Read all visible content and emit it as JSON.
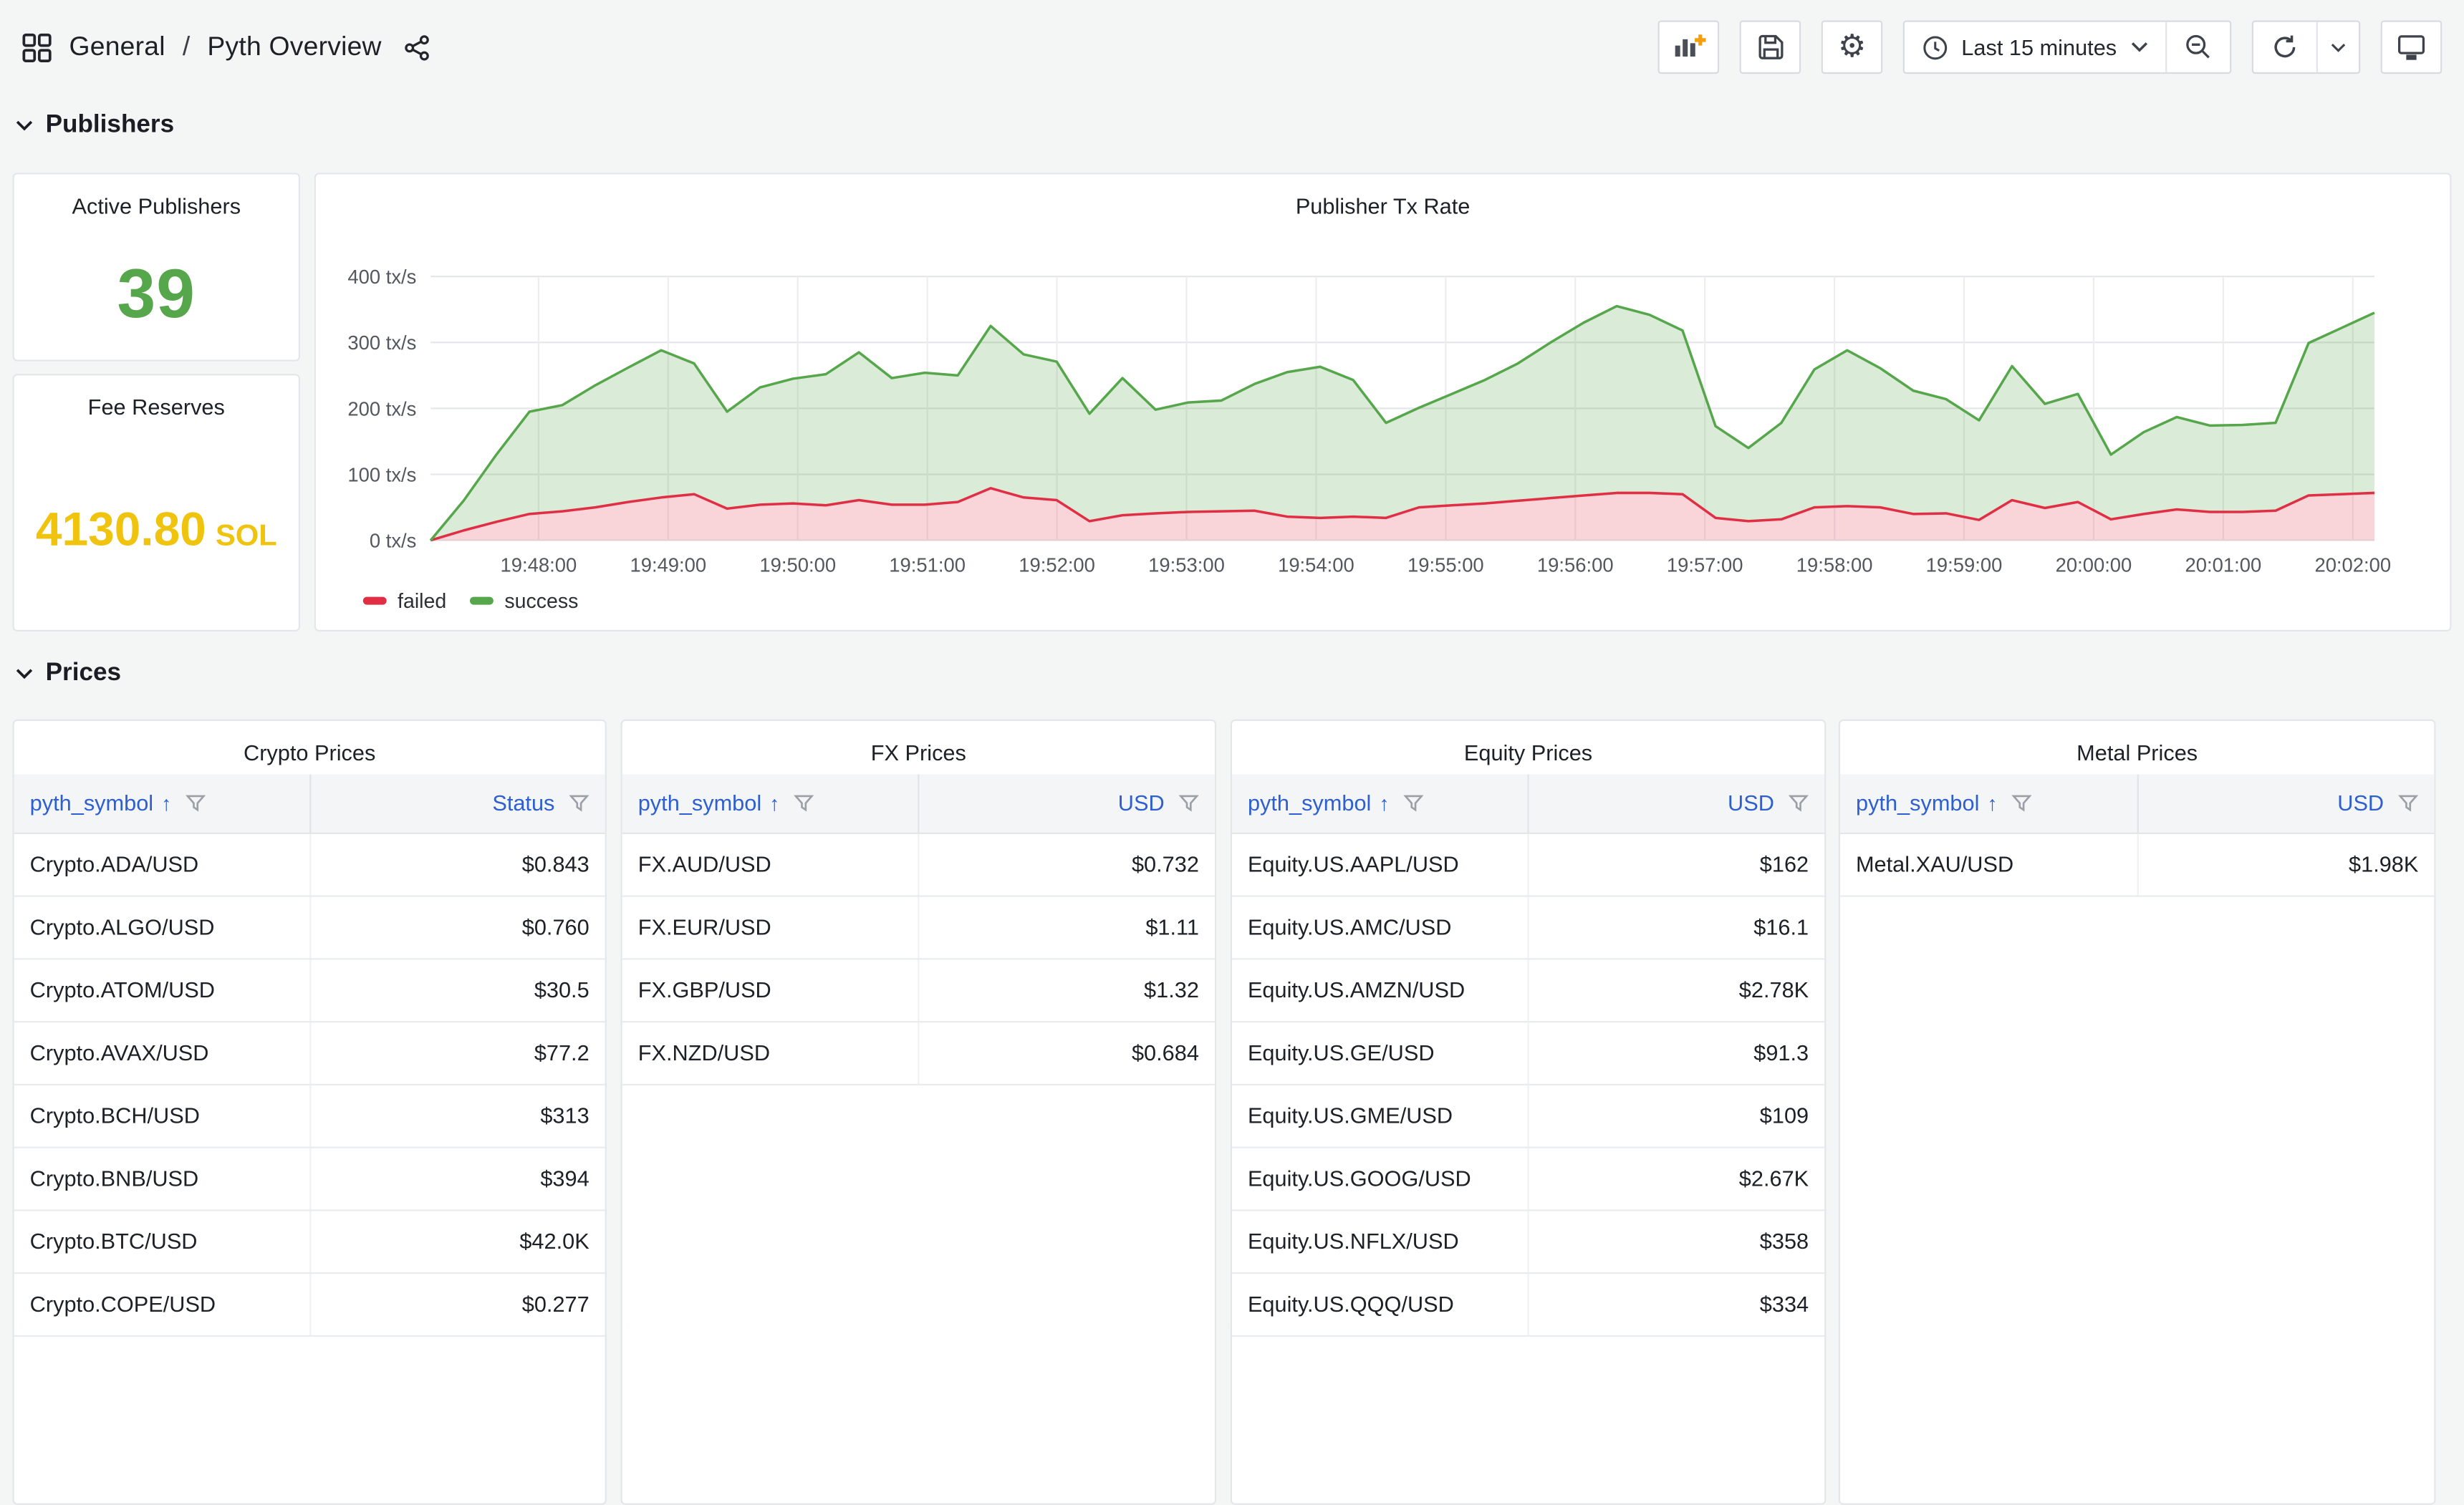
{
  "header": {
    "breadcrumb": {
      "folder": "General",
      "separator": "/",
      "dashboard": "Pyth Overview"
    },
    "toolbar": {
      "time_range_label": "Last 15 minutes",
      "icons": [
        "add-panel-icon",
        "save-dashboard-icon",
        "settings-gear-icon",
        "clock-icon",
        "chevron-down-icon",
        "zoom-out-icon",
        "refresh-icon",
        "refresh-interval-chevron-icon",
        "cycle-view-tv-icon"
      ]
    },
    "icons": [
      "apps-grid-icon",
      "share-icon"
    ]
  },
  "sections": {
    "publishers": {
      "title": "Publishers"
    },
    "prices": {
      "title": "Prices"
    }
  },
  "stats": {
    "active_publishers": {
      "title": "Active Publishers",
      "value": "39",
      "color": "#56A64B"
    },
    "fee_reserves": {
      "title": "Fee Reserves",
      "value": "4130.80",
      "unit": "SOL",
      "color": "#F0C40E"
    }
  },
  "chart_data": {
    "type": "area",
    "title": "Publisher Tx Rate",
    "xlabel": "",
    "ylabel": "tx/s",
    "ylim": [
      0,
      400
    ],
    "y_ticks": [
      400,
      300,
      200,
      100,
      0
    ],
    "y_tick_labels": [
      "400 tx/s",
      "300 tx/s",
      "200 tx/s",
      "100 tx/s",
      "0 tx/s"
    ],
    "x_window": [
      "19:47:10",
      "20:02:10"
    ],
    "x_window_seconds": 900,
    "x_tick_offset_s": 50,
    "x_tick_step_s": 60,
    "x_tick_labels": [
      "19:48:00",
      "19:49:00",
      "19:50:00",
      "19:51:00",
      "19:52:00",
      "19:53:00",
      "19:54:00",
      "19:55:00",
      "19:56:00",
      "19:57:00",
      "19:58:00",
      "19:59:00",
      "20:00:00",
      "20:01:00",
      "20:02:00"
    ],
    "grid": true,
    "legend_position": "bottom",
    "fill_between_series": true,
    "series": [
      {
        "name": "failed",
        "color": "#E02F44",
        "fill": "rgba(224,47,68,0.20)",
        "values": [
          0,
          15,
          28,
          40,
          44,
          50,
          58,
          65,
          70,
          48,
          54,
          56,
          53,
          61,
          54,
          54,
          58,
          79,
          65,
          61,
          29,
          38,
          41,
          43,
          44,
          45,
          36,
          34,
          36,
          34,
          50,
          53,
          56,
          60,
          64,
          68,
          72,
          72,
          70,
          34,
          29,
          32,
          50,
          52,
          50,
          40,
          41,
          31,
          61,
          49,
          58,
          32,
          40,
          47,
          43,
          43,
          45,
          68,
          70,
          72
        ]
      },
      {
        "name": "success",
        "color": "#56A64B",
        "fill": "rgba(86,166,75,0.22)",
        "values": [
          0,
          60,
          130,
          195,
          205,
          235,
          262,
          288,
          268,
          195,
          232,
          245,
          252,
          285,
          246,
          254,
          250,
          325,
          282,
          271,
          192,
          246,
          198,
          209,
          212,
          237,
          255,
          263,
          243,
          178,
          201,
          222,
          243,
          268,
          300,
          330,
          355,
          342,
          318,
          173,
          140,
          178,
          259,
          288,
          261,
          227,
          214,
          182,
          264,
          207,
          222,
          130,
          164,
          187,
          174,
          175,
          178,
          299,
          322,
          345
        ]
      }
    ]
  },
  "tables": [
    {
      "title": "Crypto Prices",
      "columns": [
        "pyth_symbol",
        "Status"
      ],
      "sort_column": "pyth_symbol",
      "sort_arrow": "↑",
      "rows": [
        [
          "Crypto.ADA/USD",
          "$0.843"
        ],
        [
          "Crypto.ALGO/USD",
          "$0.760"
        ],
        [
          "Crypto.ATOM/USD",
          "$30.5"
        ],
        [
          "Crypto.AVAX/USD",
          "$77.2"
        ],
        [
          "Crypto.BCH/USD",
          "$313"
        ],
        [
          "Crypto.BNB/USD",
          "$394"
        ],
        [
          "Crypto.BTC/USD",
          "$42.0K"
        ],
        [
          "Crypto.COPE/USD",
          "$0.277"
        ]
      ]
    },
    {
      "title": "FX Prices",
      "columns": [
        "pyth_symbol",
        "USD"
      ],
      "sort_column": "pyth_symbol",
      "sort_arrow": "↑",
      "rows": [
        [
          "FX.AUD/USD",
          "$0.732"
        ],
        [
          "FX.EUR/USD",
          "$1.11"
        ],
        [
          "FX.GBP/USD",
          "$1.32"
        ],
        [
          "FX.NZD/USD",
          "$0.684"
        ]
      ]
    },
    {
      "title": "Equity Prices",
      "columns": [
        "pyth_symbol",
        "USD"
      ],
      "sort_column": "pyth_symbol",
      "sort_arrow": "↑",
      "rows": [
        [
          "Equity.US.AAPL/USD",
          "$162"
        ],
        [
          "Equity.US.AMC/USD",
          "$16.1"
        ],
        [
          "Equity.US.AMZN/USD",
          "$2.78K"
        ],
        [
          "Equity.US.GE/USD",
          "$91.3"
        ],
        [
          "Equity.US.GME/USD",
          "$109"
        ],
        [
          "Equity.US.GOOG/USD",
          "$2.67K"
        ],
        [
          "Equity.US.NFLX/USD",
          "$358"
        ],
        [
          "Equity.US.QQQ/USD",
          "$334"
        ]
      ]
    },
    {
      "title": "Metal Prices",
      "columns": [
        "pyth_symbol",
        "USD"
      ],
      "sort_column": "pyth_symbol",
      "sort_arrow": "↑",
      "rows": [
        [
          "Metal.XAU/USD",
          "$1.98K"
        ]
      ]
    }
  ]
}
